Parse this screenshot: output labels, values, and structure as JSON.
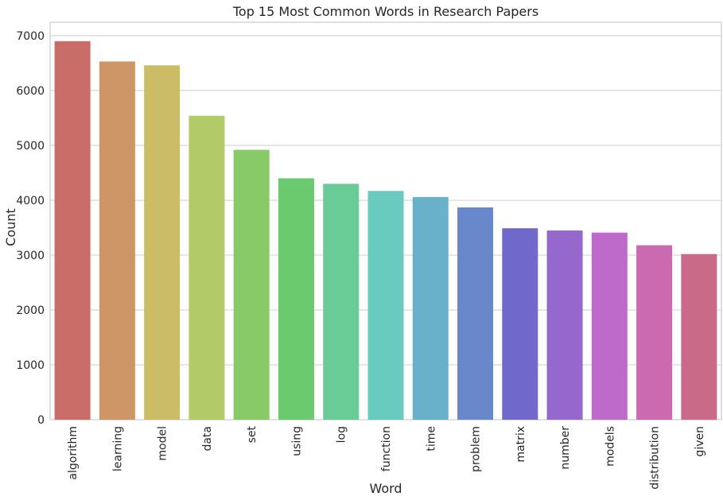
{
  "chart_data": {
    "type": "bar",
    "title": "Top 15 Most Common Words in Research Papers",
    "xlabel": "Word",
    "ylabel": "Count",
    "categories": [
      "algorithm",
      "learning",
      "model",
      "data",
      "set",
      "using",
      "log",
      "function",
      "time",
      "problem",
      "matrix",
      "number",
      "models",
      "distribution",
      "given"
    ],
    "values": [
      6900,
      6530,
      6460,
      5540,
      4920,
      4400,
      4300,
      4170,
      4060,
      3870,
      3490,
      3450,
      3410,
      3180,
      3020
    ],
    "colors": [
      "#c96b66",
      "#cd9666",
      "#cbbc66",
      "#b2cb66",
      "#88cb66",
      "#69cb6d",
      "#69cb97",
      "#69cbbf",
      "#69b0cb",
      "#6988cb",
      "#7069cb",
      "#9569cb",
      "#bf69cb",
      "#cb69b1",
      "#cb6988"
    ],
    "yticks": [
      0,
      1000,
      2000,
      3000,
      4000,
      5000,
      6000,
      7000
    ],
    "ylim": [
      0,
      7245
    ],
    "grid": true
  }
}
